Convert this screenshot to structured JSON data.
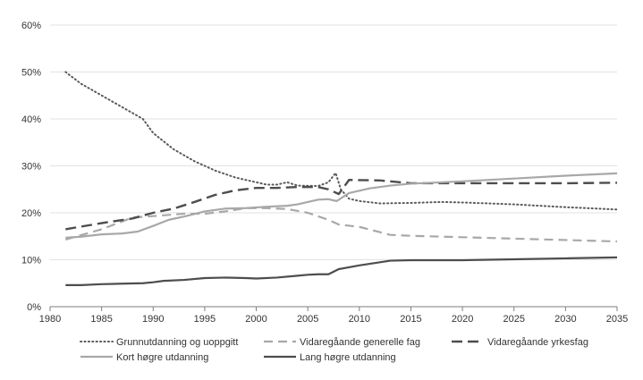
{
  "chart_data": {
    "type": "line",
    "title": "",
    "xlabel": "",
    "ylabel": "",
    "xlim": [
      1980,
      2035
    ],
    "ylim": [
      0,
      60
    ],
    "x_ticks": [
      1980,
      1985,
      1990,
      1995,
      2000,
      2005,
      2010,
      2015,
      2020,
      2025,
      2030,
      2035
    ],
    "x_tick_labels": [
      "1980",
      "1985",
      "1990",
      "1995",
      "2000",
      "2005",
      "2010",
      "2015",
      "2020",
      "2025",
      "2030",
      "2035"
    ],
    "y_ticks": [
      0,
      10,
      20,
      30,
      40,
      50,
      60
    ],
    "y_tick_labels": [
      "0%",
      "10%",
      "20%",
      "30%",
      "40%",
      "50%",
      "60%"
    ],
    "grid": "horizontal",
    "legend_position": "bottom",
    "series": [
      {
        "name": "Grunnutdanning og uoppgitt",
        "color": "#5a5a5a",
        "dash": "dotted",
        "points": [
          [
            1981.5,
            50.0
          ],
          [
            1983,
            47.5
          ],
          [
            1985,
            45
          ],
          [
            1987,
            42.5
          ],
          [
            1989,
            40
          ],
          [
            1990,
            37
          ],
          [
            1992,
            33.5
          ],
          [
            1994,
            31
          ],
          [
            1996,
            29
          ],
          [
            1998,
            27.5
          ],
          [
            2000,
            26.5
          ],
          [
            2001,
            26
          ],
          [
            2002,
            26
          ],
          [
            2003,
            26.5
          ],
          [
            2004,
            25.8
          ],
          [
            2006,
            25.7
          ],
          [
            2007,
            26.5
          ],
          [
            2007.7,
            28.5
          ],
          [
            2008.2,
            25
          ],
          [
            2009,
            23
          ],
          [
            2010,
            22.5
          ],
          [
            2012,
            22
          ],
          [
            2015,
            22.1
          ],
          [
            2018,
            22.3
          ],
          [
            2020,
            22.2
          ],
          [
            2025,
            21.8
          ],
          [
            2030,
            21.2
          ],
          [
            2035,
            20.7
          ]
        ]
      },
      {
        "name": "Vidaregåande generelle fag",
        "color": "#a8a8a8",
        "dash": "dashed",
        "points": [
          [
            1981.5,
            14.3
          ],
          [
            1985,
            16.5
          ],
          [
            1988,
            19
          ],
          [
            1990,
            19.3
          ],
          [
            1993,
            19.8
          ],
          [
            1995,
            19.8
          ],
          [
            1997,
            20.3
          ],
          [
            1999,
            21
          ],
          [
            2001,
            21
          ],
          [
            2003,
            20.8
          ],
          [
            2005,
            20
          ],
          [
            2007,
            18.5
          ],
          [
            2008,
            17.5
          ],
          [
            2010,
            17
          ],
          [
            2013,
            15.3
          ],
          [
            2015,
            15.1
          ],
          [
            2020,
            14.8
          ],
          [
            2025,
            14.5
          ],
          [
            2030,
            14.2
          ],
          [
            2035,
            13.9
          ]
        ]
      },
      {
        "name": "Vidaregåande yrkesfag",
        "color": "#4d4d4d",
        "dash": "longdash",
        "points": [
          [
            1981.5,
            16.5
          ],
          [
            1985,
            17.8
          ],
          [
            1988,
            18.8
          ],
          [
            1990,
            20
          ],
          [
            1992,
            20.9
          ],
          [
            1994,
            22.3
          ],
          [
            1996,
            23.8
          ],
          [
            1998,
            24.8
          ],
          [
            2000,
            25.3
          ],
          [
            2002,
            25.3
          ],
          [
            2004,
            25.5
          ],
          [
            2006,
            25.5
          ],
          [
            2007,
            25
          ],
          [
            2008,
            24
          ],
          [
            2009,
            27
          ],
          [
            2012,
            26.9
          ],
          [
            2015,
            26.3
          ],
          [
            2018,
            26.3
          ],
          [
            2020,
            26.3
          ],
          [
            2025,
            26.3
          ],
          [
            2030,
            26.3
          ],
          [
            2035,
            26.4
          ]
        ]
      },
      {
        "name": "Kort høgre utdanning",
        "color": "#a8a8a8",
        "dash": "solid",
        "points": [
          [
            1981.5,
            14.7
          ],
          [
            1983,
            14.9
          ],
          [
            1985,
            15.4
          ],
          [
            1987,
            15.6
          ],
          [
            1988.5,
            16
          ],
          [
            1990,
            17.2
          ],
          [
            1991.5,
            18.5
          ],
          [
            1993,
            19.2
          ],
          [
            1995,
            20.3
          ],
          [
            1997,
            20.9
          ],
          [
            1999,
            21
          ],
          [
            2001,
            21.3
          ],
          [
            2003,
            21.5
          ],
          [
            2004,
            21.8
          ],
          [
            2006,
            22.8
          ],
          [
            2007,
            22.9
          ],
          [
            2007.8,
            22.5
          ],
          [
            2009,
            24.2
          ],
          [
            2011,
            25.2
          ],
          [
            2013,
            25.8
          ],
          [
            2015,
            26.2
          ],
          [
            2020,
            26.7
          ],
          [
            2025,
            27.3
          ],
          [
            2030,
            27.9
          ],
          [
            2035,
            28.4
          ]
        ]
      },
      {
        "name": "Lang høgre utdanning",
        "color": "#4d4d4d",
        "dash": "solid",
        "points": [
          [
            1981.5,
            4.6
          ],
          [
            1983,
            4.6
          ],
          [
            1985,
            4.8
          ],
          [
            1987,
            4.9
          ],
          [
            1989,
            5
          ],
          [
            1990,
            5.2
          ],
          [
            1991,
            5.5
          ],
          [
            1993,
            5.7
          ],
          [
            1995,
            6.1
          ],
          [
            1997,
            6.2
          ],
          [
            1999,
            6.1
          ],
          [
            2000,
            6.0
          ],
          [
            2002,
            6.2
          ],
          [
            2004,
            6.6
          ],
          [
            2005,
            6.8
          ],
          [
            2006,
            6.9
          ],
          [
            2007,
            6.9
          ],
          [
            2008,
            8
          ],
          [
            2010,
            8.8
          ],
          [
            2013,
            9.8
          ],
          [
            2015,
            9.9
          ],
          [
            2020,
            9.9
          ],
          [
            2025,
            10.1
          ],
          [
            2030,
            10.3
          ],
          [
            2035,
            10.5
          ]
        ]
      }
    ]
  }
}
